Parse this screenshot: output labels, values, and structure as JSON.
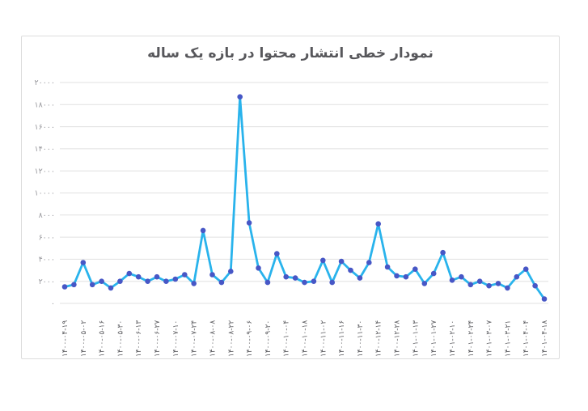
{
  "chart_data": {
    "type": "line",
    "title": "نمودار خطی انتشار محتوا در بازه یک ساله",
    "ylim": [
      0,
      20000
    ],
    "y_ticks": [
      {
        "label": "۲۰۰۰۰",
        "value": 20000
      },
      {
        "label": "۱۸۰۰۰",
        "value": 18000
      },
      {
        "label": "۱۶۰۰۰",
        "value": 16000
      },
      {
        "label": "۱۴۰۰۰",
        "value": 14000
      },
      {
        "label": "۱۲۰۰۰",
        "value": 12000
      },
      {
        "label": "۱۰۰۰۰",
        "value": 10000
      },
      {
        "label": "۸۰۰۰",
        "value": 8000
      },
      {
        "label": "۶۰۰۰",
        "value": 6000
      },
      {
        "label": "۴۰۰۰",
        "value": 4000
      },
      {
        "label": "۲۰۰۰",
        "value": 2000
      },
      {
        "label": "۰",
        "value": 0
      }
    ],
    "x_label_every": 2,
    "x_labels": [
      "۱۴۰۰-۰۴-۱۹",
      "۱۴۰۰-۰۵-۰۲",
      "۱۴۰۰-۰۵-۱۶",
      "۱۴۰۰-۰۵-۳۰",
      "۱۴۰۰-۰۶-۱۳",
      "۱۴۰۰-۰۶-۲۷",
      "۱۴۰۰-۰۷-۱۰",
      "۱۴۰۰-۰۷-۲۴",
      "۱۴۰۰-۰۸-۰۸",
      "۱۴۰۰-۰۸-۲۲",
      "۱۴۰۰-۰۹-۰۶",
      "۱۴۰۰-۰۹-۲۰",
      "۱۴۰۰-۱۰-۰۴",
      "۱۴۰۰-۱۰-۱۸",
      "۱۴۰۰-۱۱-۰۲",
      "۱۴۰۰-۱۱-۱۶",
      "۱۴۰۰-۱۱-۳۰",
      "۱۴۰۰-۱۲-۱۴",
      "۱۴۰۰-۱۲-۲۸",
      "۱۴۰۱-۰۱-۱۳",
      "۱۴۰۱-۰۱-۲۷",
      "۱۴۰۱-۰۲-۱۰",
      "۱۴۰۱-۰۲-۲۴",
      "۱۴۰۱-۰۳-۰۷",
      "۱۴۰۱-۰۳-۲۱",
      "۱۴۰۱-۰۴-۰۴",
      "۱۴۰۱-۰۴-۱۸"
    ],
    "values": [
      1500,
      1700,
      3700,
      1700,
      2000,
      1400,
      2000,
      2700,
      2400,
      2000,
      2400,
      2000,
      2200,
      2600,
      1800,
      6600,
      2600,
      1900,
      2900,
      18700,
      7300,
      3200,
      1900,
      4500,
      2400,
      2300,
      1900,
      2000,
      3900,
      1900,
      3800,
      3000,
      2300,
      3700,
      7200,
      3300,
      2500,
      2400,
      3100,
      1800,
      2700,
      4600,
      2100,
      2400,
      1700,
      2000,
      1600,
      1800,
      1400,
      2400,
      3100,
      1600,
      400
    ],
    "line_color": "#29b3ec",
    "marker_color": "#4757c6",
    "grid_color": "#e0e0e0",
    "legend": "none",
    "grid": "horizontal-only"
  }
}
